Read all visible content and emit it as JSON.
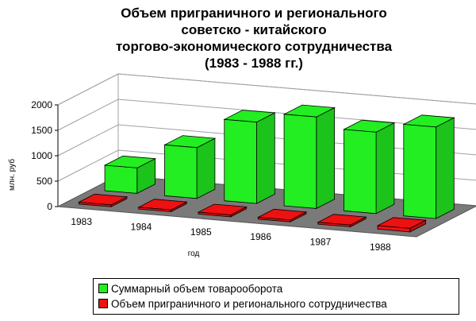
{
  "title_lines": [
    "Объем приграничного и регионального",
    "советско - китайского",
    "торгово-экономического сотрудничества",
    "(1983 - 1988 гг.)"
  ],
  "colors": {
    "green": "#22ee22",
    "red": "#ee1111",
    "floor": "#7a7a7a"
  },
  "chart_data": {
    "type": "bar",
    "title": "Объем приграничного и регионального советско - китайского торгово-экономического сотрудничества (1983 - 1988 гг.)",
    "xlabel": "год",
    "ylabel": "млн. руб",
    "categories": [
      "1983",
      "1984",
      "1985",
      "1986",
      "1987",
      "1988"
    ],
    "ylim": [
      0,
      2000
    ],
    "yticks": [
      0,
      500,
      1000,
      1500,
      2000
    ],
    "grid": true,
    "legend_position": "bottom",
    "series": [
      {
        "name": "Суммарный объем товарооборота",
        "values": [
          500,
          1000,
          1600,
          1800,
          1600,
          1800
        ]
      },
      {
        "name": "Объем приграничного и регионального сотрудничества",
        "values": [
          0,
          0,
          0,
          0,
          0,
          70
        ]
      }
    ]
  }
}
